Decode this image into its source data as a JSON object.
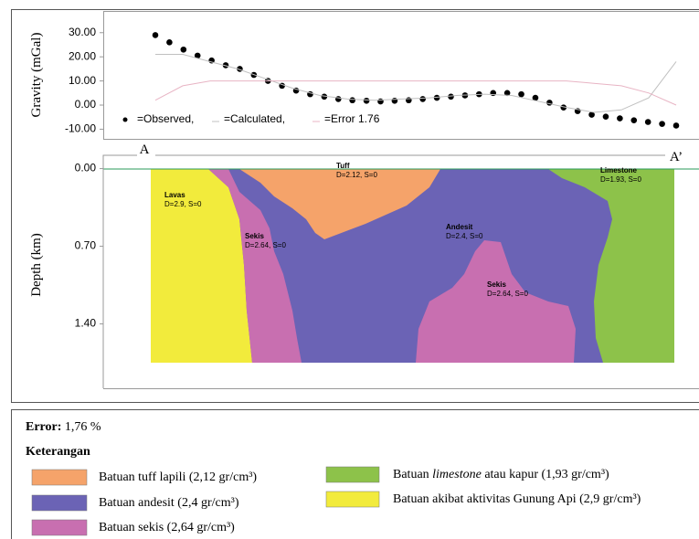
{
  "chart_data": [
    {
      "type": "line",
      "ylabel": "Gravity (mGal)",
      "ylim": [
        -14,
        39
      ],
      "yticks": [
        {
          "value": 30,
          "label": "30.00"
        },
        {
          "value": 20,
          "label": "20.00"
        },
        {
          "value": 10,
          "label": "10.00"
        },
        {
          "value": 0,
          "label": "0.00"
        },
        {
          "value": -10,
          "label": "-10.00"
        }
      ],
      "series": [
        {
          "name": "=Observed,",
          "color": "#000000",
          "values": [
            29,
            26,
            23,
            20.5,
            18.5,
            16.5,
            15,
            12.5,
            10,
            8,
            6,
            4.5,
            3.5,
            2.5,
            2,
            1.8,
            1.5,
            1.8,
            2,
            2.5,
            3,
            3.5,
            4,
            4.5,
            5,
            5,
            4.5,
            3,
            1,
            -1,
            -2.5,
            -4,
            -4.8,
            -5.5,
            -6.3,
            -7,
            -7.8,
            -8.5
          ]
        },
        {
          "name": "=Calculated,",
          "color": "#c0c0c0",
          "values": [
            21,
            21,
            18,
            15,
            11,
            7,
            4,
            2.5,
            2,
            2.5,
            3,
            4,
            4.5,
            4,
            1.5,
            -1,
            -3,
            -2,
            3,
            18
          ]
        },
        {
          "name": "=Error 1.76",
          "color": "#e8b4c4",
          "values": [
            2,
            8,
            10,
            10,
            10,
            10,
            10,
            10,
            10,
            10,
            10,
            10,
            10,
            10,
            10,
            10,
            9,
            8,
            5,
            0
          ]
        }
      ]
    },
    {
      "type": "cross-section",
      "ylabel": "Depth (km)",
      "ylim": [
        -0.12,
        1.98
      ],
      "yticks": [
        {
          "value": 0,
          "label": "0.00"
        },
        {
          "value": 0.7,
          "label": "0.70"
        },
        {
          "value": 1.4,
          "label": "1.40"
        }
      ],
      "profile_labels": [
        "A",
        "A’"
      ],
      "bodies": [
        {
          "name": "Lavas",
          "text": "D=2.9, S=0"
        },
        {
          "name": "Tuff",
          "text": "D=2.12, S=0"
        },
        {
          "name": "Sekis",
          "text": "D=2.64, S=0"
        },
        {
          "name": "Andesit",
          "text": "D=2.4, S=0"
        },
        {
          "name": "Sekis",
          "text": "D=2.64, S=0"
        },
        {
          "name": "Limestone",
          "text": "D=1.93, S=0"
        }
      ]
    }
  ],
  "legend": {
    "error_label": "Error:",
    "error_value": "1,76 %",
    "title": "Keterangan",
    "items": [
      {
        "color": "#f5a36a",
        "text": [
          "Batuan tuff lapili (2,12 gr/cm³)"
        ]
      },
      {
        "color": "#6b63b5",
        "text": [
          "Batuan andesit (2,4 gr/cm³)"
        ]
      },
      {
        "color": "#c86fb0",
        "text": [
          "Batuan sekis (2,64 gr/cm³)"
        ]
      },
      {
        "color": "#8dc24a",
        "text": [
          "Batuan ",
          "limestone",
          " atau kapur (1,93 gr/cm³)"
        ]
      },
      {
        "color": "#f2eb3c",
        "text": [
          "Batuan akibat aktivitas Gunung Api (2,9 gr/cm³)"
        ]
      }
    ]
  }
}
